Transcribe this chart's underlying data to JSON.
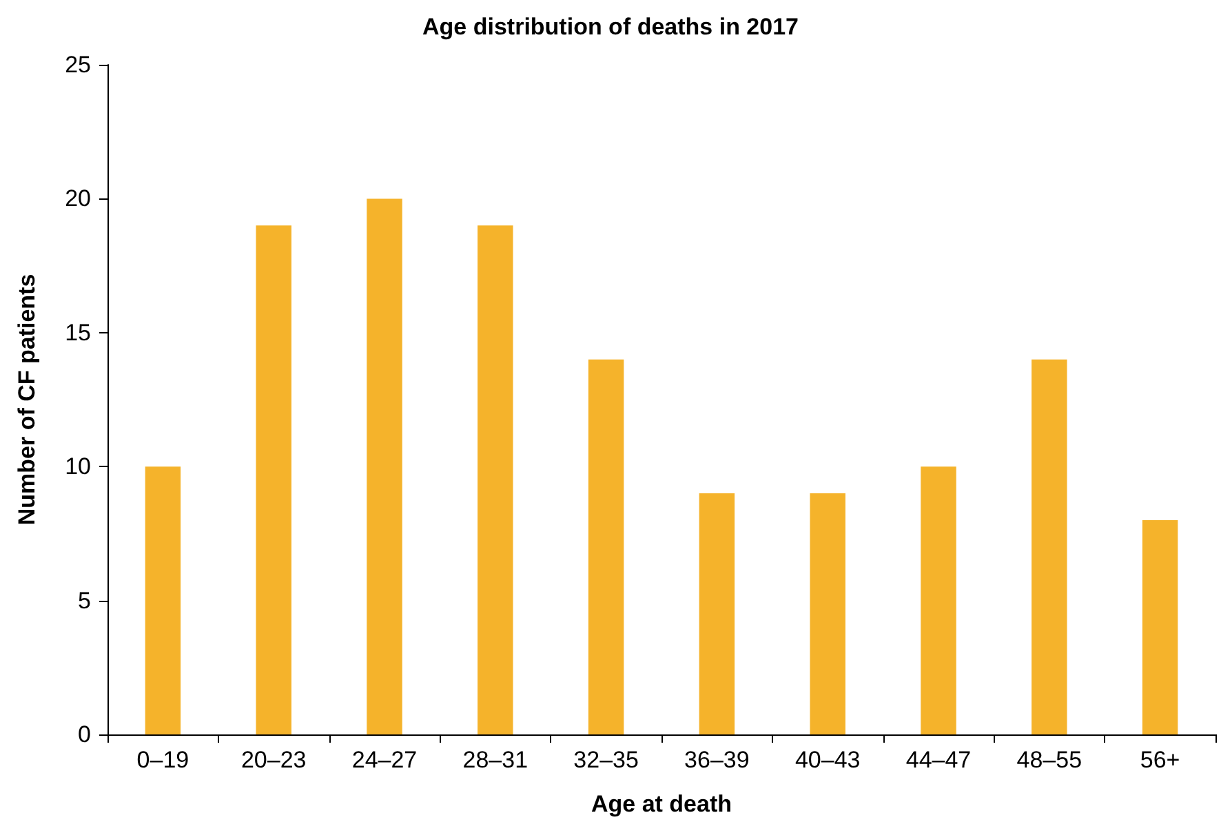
{
  "chart_data": {
    "type": "bar",
    "title": "Age distribution of deaths in 2017",
    "xlabel": "Age at death",
    "ylabel": "Number of CF patients",
    "categories": [
      "0–19",
      "20–23",
      "24–27",
      "28–31",
      "32–35",
      "36–39",
      "40–43",
      "44–47",
      "48–55",
      "56+"
    ],
    "values": [
      10,
      19,
      20,
      19,
      14,
      9,
      9,
      10,
      14,
      8
    ],
    "color": "#f5b32b",
    "ylim": [
      0,
      25
    ],
    "yticks": [
      0,
      5,
      10,
      15,
      20,
      25
    ]
  }
}
